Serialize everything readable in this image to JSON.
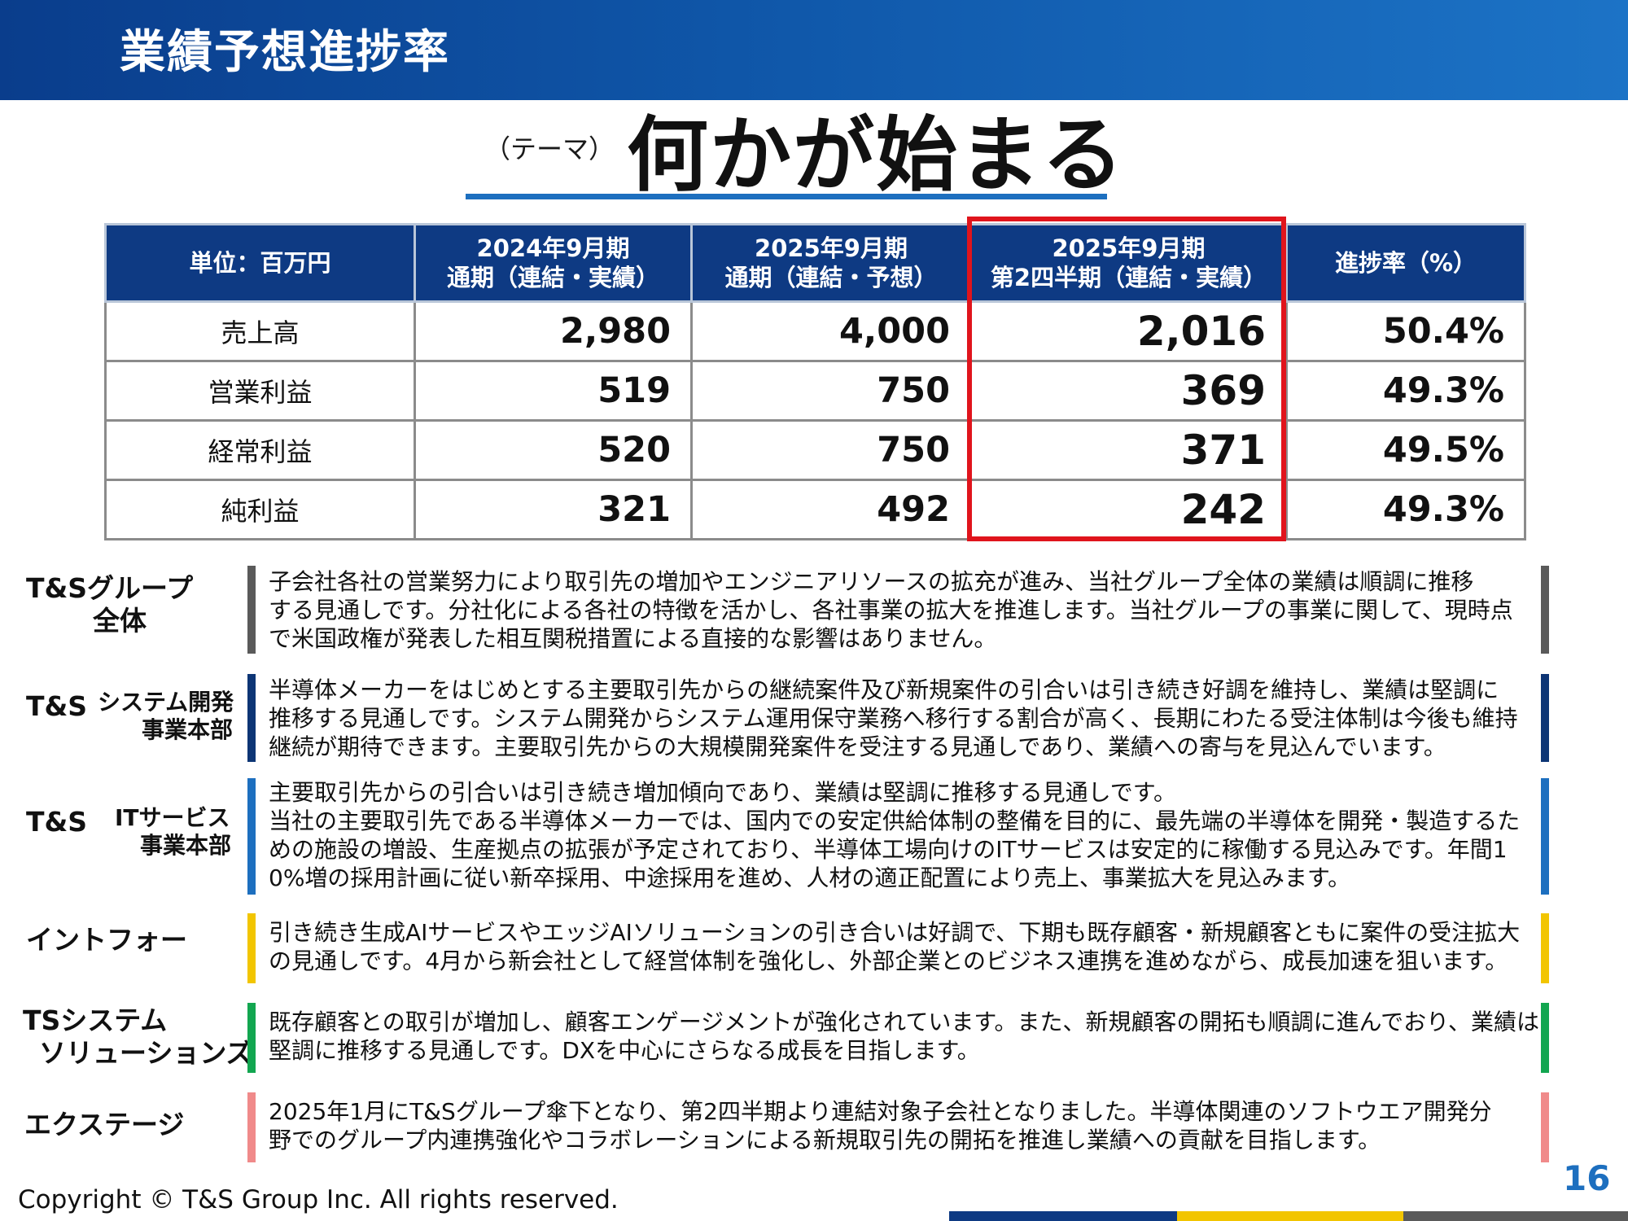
{
  "header": {
    "title": "業績予想進捗率"
  },
  "theme": {
    "label": "（テーマ）",
    "text": "何かが始まる"
  },
  "table": {
    "headers": [
      [
        "単位：百万円"
      ],
      [
        "2024年9月期",
        "通期（連結・実績）"
      ],
      [
        "2025年9月期",
        "通期（連結・予想）"
      ],
      [
        "2025年9月期",
        "第2四半期（連結・実績）"
      ],
      [
        "進捗率（%）"
      ]
    ],
    "rows": [
      {
        "label": "売上高",
        "fy2024": "2,980",
        "fy2025_forecast": "4,000",
        "q2_2025": "2,016",
        "progress": "50.4%"
      },
      {
        "label": "営業利益",
        "fy2024": "519",
        "fy2025_forecast": "750",
        "q2_2025": "369",
        "progress": "49.3%"
      },
      {
        "label": "経常利益",
        "fy2024": "520",
        "fy2025_forecast": "750",
        "q2_2025": "371",
        "progress": "49.5%"
      },
      {
        "label": "純利益",
        "fy2024": "321",
        "fy2025_forecast": "492",
        "q2_2025": "242",
        "progress": "49.3%"
      }
    ]
  },
  "segments": [
    {
      "name_lines": [
        "T&Sグループ",
        "全体"
      ],
      "color": "#5a5a5a",
      "text_lines": [
        "子会社各社の営業努力により取引先の増加やエンジニアリソースの拡充が進み、当社グループ全体の業績は順調に推移",
        "する見通しです。分社化による各社の特徴を活かし、各社事業の拡大を推進します。当社グループの事業に関して、現時点",
        "で米国政権が発表した相互関税措置による直接的な影響はありません。"
      ]
    },
    {
      "name_main": "T&S",
      "name_sub": [
        "システム開発",
        "事業本部"
      ],
      "color": "#0d3575",
      "text_lines": [
        "半導体メーカーをはじめとする主要取引先からの継続案件及び新規案件の引合いは引き続き好調を維持し、業績は堅調に",
        "推移する見通しです。システム開発からシステム運用保守業務へ移行する割合が高く、長期にわたる受注体制は今後も維持",
        "継続が期待できます。主要取引先からの大規模開発案件を受注する見通しであり、業績への寄与を見込んでいます。"
      ]
    },
    {
      "name_main": "T&S",
      "name_sub": [
        "ITサービス",
        "事業本部"
      ],
      "color": "#1d6fbf",
      "text_lines": [
        "主要取引先からの引合いは引き続き増加傾向であり、業績は堅調に推移する見通しです。",
        "当社の主要取引先である半導体メーカーでは、国内での安定供給体制の整備を目的に、最先端の半導体を開発・製造するた",
        "めの施設の増設、生産拠点の拡張が予定されており、半導体工場向けのITサービスは安定的に稼働する見込みです。年間1",
        "0%増の採用計画に従い新卒採用、中途採用を進め、人材の適正配置により売上、事業拡大を見込みます。"
      ]
    },
    {
      "name_lines": [
        "イントフォー"
      ],
      "color": "#f2c500",
      "text_lines": [
        "引き続き生成AIサービスやエッジAIソリューションの引き合いは好調で、下期も既存顧客・新規顧客ともに案件の受注拡大",
        "の見通しです。4月から新会社として経営体制を強化し、外部企業とのビジネス連携を進めながら、成長加速を狙います。"
      ]
    },
    {
      "name_lines": [
        "TSシステム",
        "ソリューションズ"
      ],
      "color": "#12a650",
      "text_lines": [
        "既存顧客との取引が増加し、顧客エンゲージメントが強化されています。また、新規顧客の開拓も順調に進んでおり、業績は",
        "堅調に推移する見通しです。DXを中心にさらなる成長を目指します。"
      ]
    },
    {
      "name_lines": [
        "エクステージ"
      ],
      "color": "#f08a8a",
      "text_lines": [
        "2025年1月にT&Sグループ傘下となり、第2四半期より連結対象子会社となりました。半導体関連のソフトウエア開発分",
        "野でのグループ内連携強化やコラボレーションによる新規取引先の開拓を推進し業績への貢献を目指します。"
      ]
    }
  ],
  "footer": {
    "copyright": "Copyright © T&S Group Inc. All rights reserved.",
    "page_number": "16",
    "stripe_colors": [
      "#0e3a83",
      "#f2c500",
      "#5a5a5a"
    ]
  }
}
